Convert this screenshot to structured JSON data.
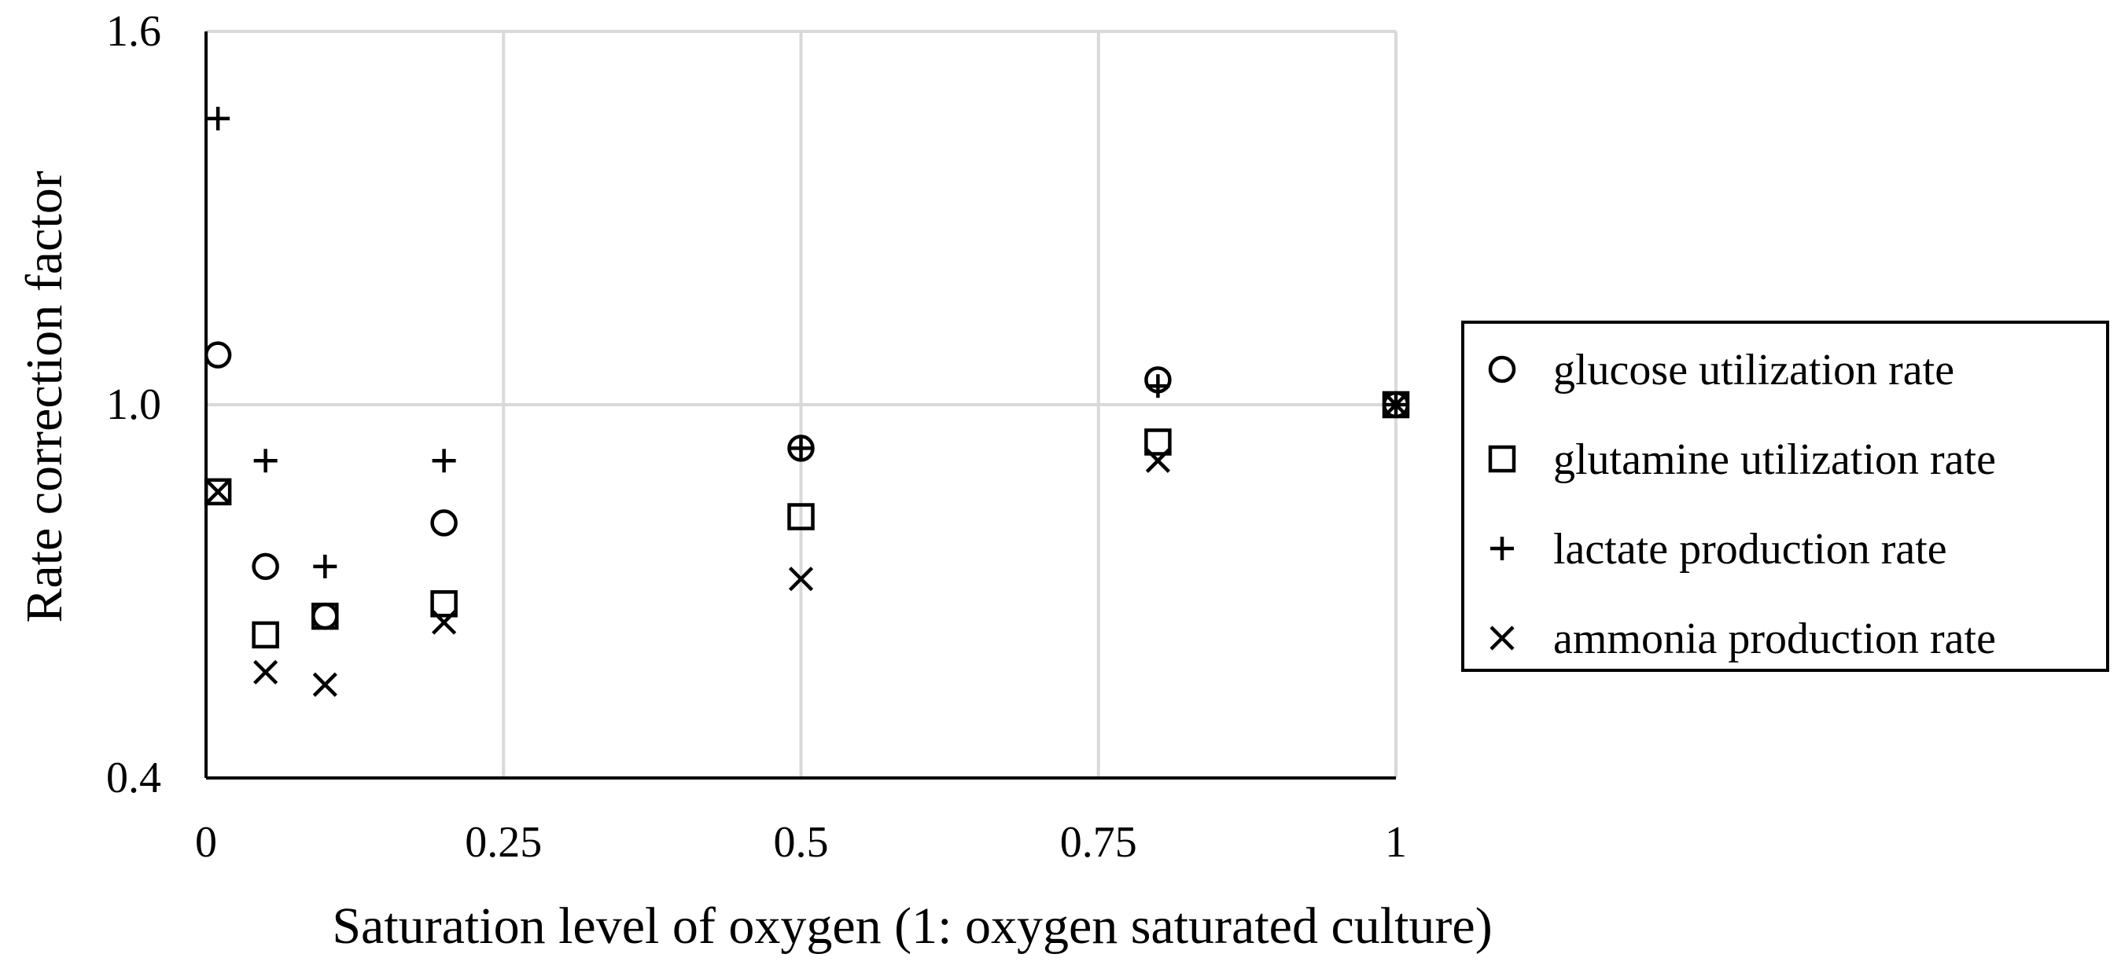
{
  "chart_data": {
    "type": "scatter",
    "title": "",
    "xlabel": "Saturation level of oxygen (1: oxygen saturated culture)",
    "ylabel": "Rate correction factor",
    "xlim": [
      0,
      1
    ],
    "ylim": [
      0.4,
      1.6
    ],
    "x_ticks": [
      0,
      0.25,
      0.5,
      0.75,
      1
    ],
    "x_tick_labels": [
      "0",
      "0.25",
      "0.5",
      "0.75",
      "1"
    ],
    "y_ticks": [
      0.4,
      1.0,
      1.6
    ],
    "y_tick_labels": [
      "0.4",
      "1.0",
      "1.6"
    ],
    "grid": true,
    "legend_position": "right",
    "series": [
      {
        "name": "glucose utilization rate",
        "marker": "circle",
        "x": [
          0.01,
          0.05,
          0.1,
          0.2,
          0.5,
          0.8,
          1.0
        ],
        "y": [
          1.08,
          0.74,
          0.66,
          0.81,
          0.93,
          1.04,
          1.0
        ]
      },
      {
        "name": "glutamine utilization rate",
        "marker": "square",
        "x": [
          0.01,
          0.05,
          0.1,
          0.2,
          0.5,
          0.8,
          1.0
        ],
        "y": [
          0.86,
          0.63,
          0.66,
          0.68,
          0.82,
          0.94,
          1.0
        ]
      },
      {
        "name": "lactate production rate",
        "marker": "plus",
        "x": [
          0.01,
          0.05,
          0.1,
          0.2,
          0.5,
          0.8,
          1.0
        ],
        "y": [
          1.46,
          0.91,
          0.74,
          0.91,
          0.93,
          1.03,
          1.0
        ]
      },
      {
        "name": "ammonia production rate",
        "marker": "x",
        "x": [
          0.01,
          0.05,
          0.1,
          0.2,
          0.5,
          0.8,
          1.0
        ],
        "y": [
          0.86,
          0.57,
          0.55,
          0.65,
          0.72,
          0.91,
          1.0
        ]
      }
    ]
  }
}
